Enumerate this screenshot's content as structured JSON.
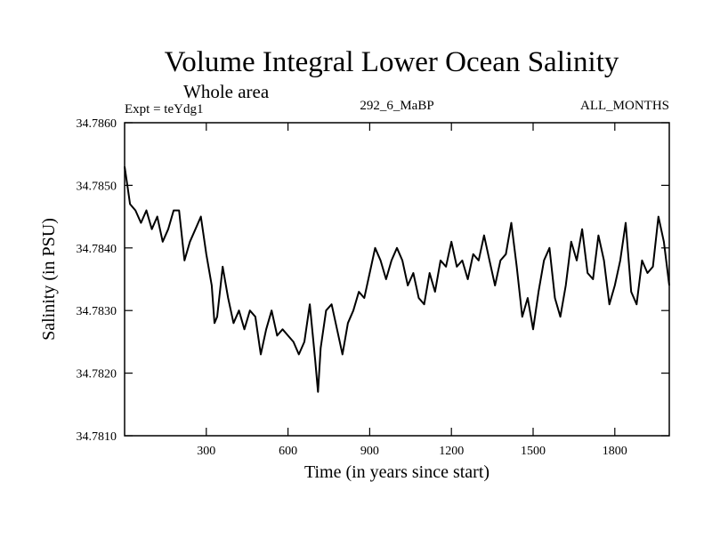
{
  "chart_data": {
    "type": "line",
    "title": "Volume Integral Lower Ocean Salinity",
    "subtitle": "Whole area",
    "expt_label": "Expt = teYdg1",
    "run_label": "292_6_MaBP",
    "months_label": "ALL_MONTHS",
    "xlabel": "Time (in years since start)",
    "ylabel": "Salinity (in PSU)",
    "xlim": [
      0,
      2000
    ],
    "ylim": [
      34.781,
      34.786
    ],
    "xticks": [
      300,
      600,
      900,
      1200,
      1500,
      1800
    ],
    "xtick_labels": [
      "300",
      "600",
      "900",
      "1200",
      "1500",
      "1800"
    ],
    "yticks": [
      34.781,
      34.782,
      34.783,
      34.784,
      34.785,
      34.786
    ],
    "ytick_labels": [
      "34.7810",
      "34.7820",
      "34.7830",
      "34.7840",
      "34.7850",
      "34.7860"
    ],
    "line_color": "#000000",
    "series": [
      {
        "name": "Salinity",
        "x": [
          0,
          10,
          20,
          40,
          60,
          80,
          100,
          120,
          140,
          160,
          180,
          200,
          220,
          240,
          260,
          280,
          300,
          320,
          330,
          340,
          360,
          380,
          400,
          420,
          440,
          460,
          480,
          500,
          520,
          540,
          560,
          580,
          600,
          620,
          640,
          660,
          680,
          700,
          710,
          720,
          740,
          760,
          780,
          800,
          820,
          840,
          860,
          880,
          900,
          920,
          940,
          960,
          980,
          1000,
          1020,
          1040,
          1060,
          1080,
          1100,
          1120,
          1140,
          1160,
          1180,
          1200,
          1220,
          1240,
          1260,
          1280,
          1300,
          1320,
          1340,
          1360,
          1380,
          1400,
          1420,
          1440,
          1460,
          1480,
          1500,
          1520,
          1540,
          1560,
          1580,
          1600,
          1620,
          1640,
          1660,
          1680,
          1700,
          1720,
          1740,
          1760,
          1780,
          1800,
          1820,
          1840,
          1860,
          1880,
          1900,
          1920,
          1940,
          1960,
          1980,
          2000
        ],
        "values": [
          34.7853,
          34.785,
          34.7847,
          34.7846,
          34.7844,
          34.7846,
          34.7843,
          34.7845,
          34.7841,
          34.7843,
          34.7846,
          34.7846,
          34.7838,
          34.7841,
          34.7843,
          34.7845,
          34.7839,
          34.7834,
          34.7828,
          34.7829,
          34.7837,
          34.7832,
          34.7828,
          34.783,
          34.7827,
          34.783,
          34.7829,
          34.7823,
          34.7827,
          34.783,
          34.7826,
          34.7827,
          34.7826,
          34.7825,
          34.7823,
          34.7825,
          34.7831,
          34.7822,
          34.7817,
          34.7824,
          34.783,
          34.7831,
          34.7827,
          34.7823,
          34.7828,
          34.783,
          34.7833,
          34.7832,
          34.7836,
          34.784,
          34.7838,
          34.7835,
          34.7838,
          34.784,
          34.7838,
          34.7834,
          34.7836,
          34.7832,
          34.7831,
          34.7836,
          34.7833,
          34.7838,
          34.7837,
          34.7841,
          34.7837,
          34.7838,
          34.7835,
          34.7839,
          34.7838,
          34.7842,
          34.7838,
          34.7834,
          34.7838,
          34.7839,
          34.7844,
          34.7837,
          34.7829,
          34.7832,
          34.7827,
          34.7833,
          34.7838,
          34.784,
          34.7832,
          34.7829,
          34.7834,
          34.7841,
          34.7838,
          34.7843,
          34.7836,
          34.7835,
          34.7842,
          34.7838,
          34.7831,
          34.7834,
          34.7838,
          34.7844,
          34.7833,
          34.7831,
          34.7838,
          34.7836,
          34.7837,
          34.7845,
          34.7841,
          34.7834
        ]
      }
    ]
  }
}
